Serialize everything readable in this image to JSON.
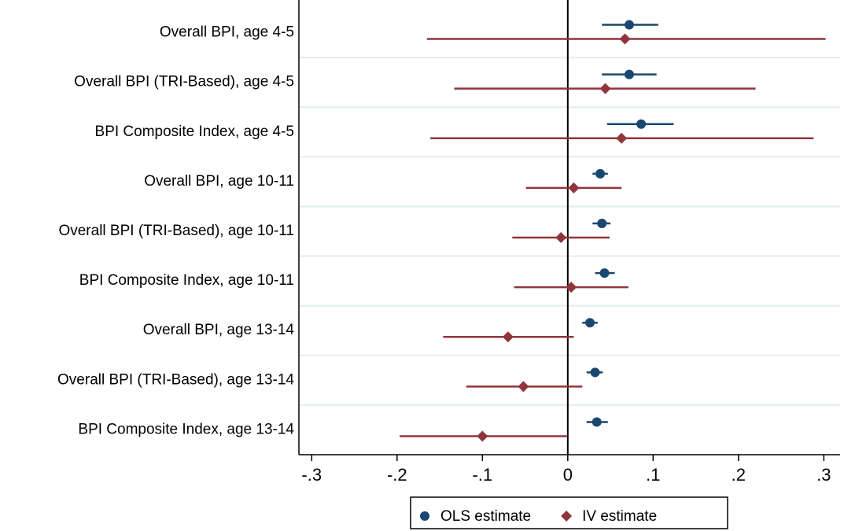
{
  "chart_data": {
    "type": "coefplot",
    "categories": [
      "Overall BPI, age 4-5",
      "Overall BPI (TRI-Based), age 4-5",
      "BPI Composite Index, age 4-5",
      "Overall BPI, age 10-11",
      "Overall BPI (TRI-Based), age 10-11",
      "BPI Composite Index, age 10-11",
      "Overall BPI, age 13-14",
      "Overall BPI (TRI-Based), age 13-14",
      "BPI Composite Index, age 13-14"
    ],
    "series": [
      {
        "name": "OLS estimate",
        "color": "#1a476f",
        "marker": "circle",
        "values": [
          0.072,
          0.072,
          0.086,
          0.038,
          0.04,
          0.043,
          0.026,
          0.032,
          0.034
        ],
        "lower": [
          0.04,
          0.04,
          0.046,
          0.029,
          0.029,
          0.032,
          0.017,
          0.022,
          0.022
        ],
        "upper": [
          0.106,
          0.104,
          0.124,
          0.047,
          0.05,
          0.055,
          0.035,
          0.041,
          0.047
        ]
      },
      {
        "name": "IV estimate",
        "color": "#90353b",
        "marker": "diamond",
        "values": [
          0.067,
          0.044,
          0.063,
          0.007,
          -0.008,
          0.004,
          -0.07,
          -0.052,
          -0.1
        ],
        "lower": [
          -0.165,
          -0.133,
          -0.161,
          -0.049,
          -0.065,
          -0.063,
          -0.146,
          -0.119,
          -0.197
        ],
        "upper": [
          0.302,
          0.22,
          0.288,
          0.063,
          0.049,
          0.071,
          0.007,
          0.017,
          -0.001
        ]
      }
    ],
    "xlim": [
      -0.315,
      0.319
    ],
    "xticks": [
      {
        "value": -0.3,
        "label": "-.3"
      },
      {
        "value": -0.2,
        "label": "-.2"
      },
      {
        "value": -0.1,
        "label": "-.1"
      },
      0,
      {
        "value": 0.1,
        "label": ".1"
      },
      {
        "value": 0.2,
        "label": ".2"
      },
      {
        "value": 0.3,
        "label": ".3"
      }
    ],
    "reference_line": 0,
    "legend": "bottom"
  }
}
